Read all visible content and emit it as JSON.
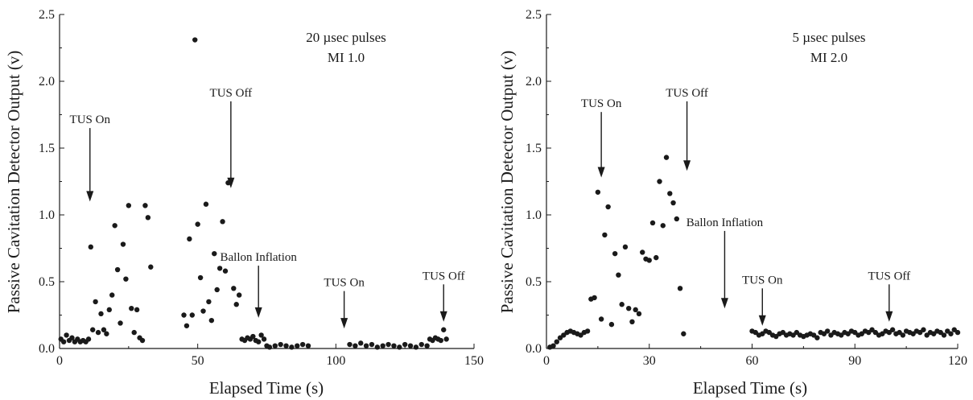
{
  "chart_data": [
    {
      "type": "scatter",
      "title": "",
      "xlabel": "Elapsed Time (s)",
      "ylabel": "Passive Cavitation Detector Output (v)",
      "xlim": [
        0,
        150
      ],
      "ylim": [
        0,
        2.5
      ],
      "xticks": [
        0,
        50,
        100,
        150
      ],
      "xtick_labels": [
        "0",
        "50",
        "100",
        "150"
      ],
      "yticks": [
        0,
        0.5,
        1.0,
        1.5,
        2.0,
        2.5
      ],
      "ytick_labels": [
        "0.0",
        "0.5",
        "1.0",
        "1.5",
        "2.0",
        "2.5"
      ],
      "grid": false,
      "legend": "none",
      "marker_color": "#1a1a1a",
      "notes": [
        "20 µsec pulses",
        "MI 1.0"
      ],
      "annotations": [
        {
          "text": "TUS On",
          "x": 11,
          "y_tip": 1.1,
          "y_top": 1.65
        },
        {
          "text": "TUS Off",
          "x": 62,
          "y_tip": 1.2,
          "y_top": 1.85
        },
        {
          "text": "Ballon Inflation",
          "x": 72,
          "y_tip": 0.23,
          "y_top": 0.62
        },
        {
          "text": "TUS On",
          "x": 103,
          "y_tip": 0.15,
          "y_top": 0.43
        },
        {
          "text": "TUS Off",
          "x": 139,
          "y_tip": 0.2,
          "y_top": 0.48
        }
      ],
      "x": [
        0.5,
        1.5,
        2.5,
        3.5,
        4.5,
        5.5,
        6.5,
        7.5,
        8.5,
        9.5,
        10.5,
        11.3,
        12,
        13,
        14,
        15,
        16,
        17,
        18,
        19,
        20,
        21,
        22,
        23,
        24,
        25,
        26,
        27,
        28,
        29,
        30,
        31,
        32,
        33,
        45,
        46,
        47,
        48,
        49,
        50,
        51,
        52,
        53,
        54,
        55,
        56,
        57,
        58,
        59,
        60,
        61,
        62,
        63,
        64,
        65,
        66,
        67,
        68,
        69,
        70,
        71,
        72,
        73,
        74,
        75,
        76,
        78,
        80,
        82,
        84,
        86,
        88,
        90,
        105,
        107,
        109,
        111,
        113,
        115,
        117,
        119,
        121,
        123,
        125,
        127,
        129,
        131,
        133,
        134,
        135,
        136,
        137,
        138,
        139,
        140
      ],
      "y": [
        0.07,
        0.05,
        0.1,
        0.06,
        0.08,
        0.05,
        0.07,
        0.05,
        0.06,
        0.05,
        0.07,
        0.76,
        0.14,
        0.35,
        0.12,
        0.26,
        0.14,
        0.11,
        0.29,
        0.4,
        0.92,
        0.59,
        0.19,
        0.78,
        0.52,
        1.07,
        0.3,
        0.12,
        0.29,
        0.08,
        0.06,
        1.07,
        0.98,
        0.61,
        0.25,
        0.17,
        0.82,
        0.25,
        2.31,
        0.93,
        0.53,
        0.28,
        1.08,
        0.35,
        0.21,
        0.71,
        0.44,
        0.6,
        0.95,
        0.58,
        1.24,
        1.26,
        0.45,
        0.33,
        0.4,
        0.07,
        0.06,
        0.08,
        0.07,
        0.09,
        0.06,
        0.05,
        0.1,
        0.07,
        0.02,
        0.01,
        0.02,
        0.03,
        0.02,
        0.01,
        0.02,
        0.03,
        0.02,
        0.03,
        0.02,
        0.04,
        0.02,
        0.03,
        0.01,
        0.02,
        0.03,
        0.02,
        0.01,
        0.03,
        0.02,
        0.01,
        0.03,
        0.02,
        0.07,
        0.06,
        0.08,
        0.07,
        0.06,
        0.14,
        0.07
      ]
    },
    {
      "type": "scatter",
      "title": "",
      "xlabel": "Elapsed Time (s)",
      "ylabel": "Passive Cavitation Detector Output (v)",
      "xlim": [
        0,
        120
      ],
      "ylim": [
        0,
        2.5
      ],
      "xticks": [
        0,
        30,
        60,
        90,
        120
      ],
      "xtick_labels": [
        "0",
        "30",
        "60",
        "90",
        "120"
      ],
      "yticks": [
        0,
        0.5,
        1.0,
        1.5,
        2.0,
        2.5
      ],
      "ytick_labels": [
        "0.0",
        "0.5",
        "1.0",
        "1.5",
        "2.0",
        "2.5"
      ],
      "grid": false,
      "legend": "none",
      "marker_color": "#1a1a1a",
      "notes": [
        "5 µsec pulses",
        "MI 2.0"
      ],
      "annotations": [
        {
          "text": "TUS On",
          "x": 16,
          "y_tip": 1.28,
          "y_top": 1.77
        },
        {
          "text": "TUS Off",
          "x": 41,
          "y_tip": 1.33,
          "y_top": 1.85
        },
        {
          "text": "Ballon Inflation",
          "x": 52,
          "y_tip": 0.3,
          "y_top": 0.88
        },
        {
          "text": "TUS On",
          "x": 63,
          "y_tip": 0.17,
          "y_top": 0.45
        },
        {
          "text": "TUS Off",
          "x": 100,
          "y_tip": 0.2,
          "y_top": 0.48
        }
      ],
      "x": [
        1,
        2,
        3,
        4,
        5,
        6,
        7,
        8,
        9,
        10,
        11,
        12,
        13,
        14,
        15,
        16,
        17,
        18,
        19,
        20,
        21,
        22,
        23,
        24,
        25,
        26,
        27,
        28,
        29,
        30,
        31,
        32,
        33,
        34,
        35,
        36,
        37,
        38,
        39,
        40,
        60,
        61,
        62,
        63,
        64,
        65,
        66,
        67,
        68,
        69,
        70,
        71,
        72,
        73,
        74,
        75,
        76,
        77,
        78,
        79,
        80,
        81,
        82,
        83,
        84,
        85,
        86,
        87,
        88,
        89,
        90,
        91,
        92,
        93,
        94,
        95,
        96,
        97,
        98,
        99,
        100,
        101,
        102,
        103,
        104,
        105,
        106,
        107,
        108,
        109,
        110,
        111,
        112,
        113,
        114,
        115,
        116,
        117,
        118,
        119,
        120
      ],
      "y": [
        0.01,
        0.02,
        0.05,
        0.08,
        0.1,
        0.12,
        0.13,
        0.12,
        0.11,
        0.1,
        0.12,
        0.13,
        0.37,
        0.38,
        1.17,
        0.22,
        0.85,
        1.06,
        0.18,
        0.71,
        0.55,
        0.33,
        0.76,
        0.3,
        0.2,
        0.29,
        0.26,
        0.72,
        0.67,
        0.66,
        0.94,
        0.68,
        1.25,
        0.92,
        1.43,
        1.16,
        1.09,
        0.97,
        0.45,
        0.11,
        0.13,
        0.12,
        0.1,
        0.11,
        0.13,
        0.12,
        0.1,
        0.09,
        0.11,
        0.12,
        0.1,
        0.11,
        0.1,
        0.12,
        0.1,
        0.09,
        0.1,
        0.11,
        0.1,
        0.08,
        0.12,
        0.11,
        0.13,
        0.1,
        0.12,
        0.11,
        0.1,
        0.12,
        0.11,
        0.13,
        0.12,
        0.1,
        0.11,
        0.13,
        0.12,
        0.14,
        0.12,
        0.1,
        0.11,
        0.13,
        0.12,
        0.14,
        0.11,
        0.12,
        0.1,
        0.13,
        0.12,
        0.11,
        0.13,
        0.12,
        0.14,
        0.1,
        0.12,
        0.11,
        0.13,
        0.12,
        0.1,
        0.13,
        0.11,
        0.14,
        0.12
      ]
    }
  ]
}
